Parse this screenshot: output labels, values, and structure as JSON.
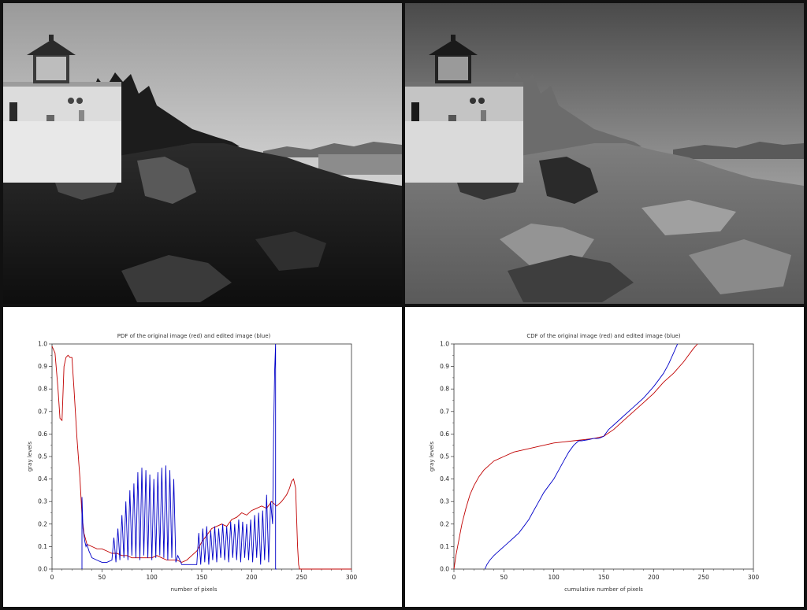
{
  "chart_data": [
    {
      "type": "line",
      "title": "PDF of the original image (red) and edited image (blue)",
      "xlabel": "number of pixels",
      "ylabel": "gray levels",
      "xlim": [
        0,
        300
      ],
      "ylim": [
        0,
        1
      ],
      "xticks": [
        "0",
        "50",
        "100",
        "150",
        "200",
        "250",
        "300"
      ],
      "yticks": [
        "0.0",
        "0.1",
        "0.2",
        "0.3",
        "0.4",
        "0.5",
        "0.6",
        "0.7",
        "0.8",
        "0.9",
        "1.0"
      ],
      "series": [
        {
          "color": "#c00000",
          "x": [
            0,
            3,
            6,
            8,
            10,
            12,
            14,
            16,
            18,
            20,
            22,
            25,
            28,
            30,
            32,
            35,
            40,
            45,
            50,
            55,
            60,
            65,
            70,
            75,
            80,
            85,
            90,
            95,
            100,
            105,
            110,
            115,
            120,
            125,
            130,
            135,
            140,
            145,
            150,
            155,
            160,
            165,
            170,
            175,
            180,
            185,
            190,
            195,
            200,
            205,
            210,
            215,
            220,
            225,
            230,
            235,
            238,
            240,
            242,
            244,
            246,
            247,
            248,
            300
          ],
          "y": [
            0.99,
            0.96,
            0.8,
            0.67,
            0.66,
            0.9,
            0.94,
            0.95,
            0.94,
            0.94,
            0.8,
            0.58,
            0.4,
            0.24,
            0.16,
            0.11,
            0.1,
            0.09,
            0.09,
            0.08,
            0.07,
            0.07,
            0.06,
            0.06,
            0.05,
            0.05,
            0.05,
            0.05,
            0.05,
            0.06,
            0.05,
            0.04,
            0.04,
            0.04,
            0.03,
            0.04,
            0.06,
            0.08,
            0.12,
            0.15,
            0.18,
            0.19,
            0.2,
            0.19,
            0.22,
            0.23,
            0.25,
            0.24,
            0.26,
            0.27,
            0.28,
            0.27,
            0.3,
            0.28,
            0.3,
            0.33,
            0.36,
            0.39,
            0.4,
            0.36,
            0.1,
            0.02,
            0.0,
            0.0
          ]
        },
        {
          "color": "#0000c8",
          "x": [
            30,
            30,
            31,
            32,
            33,
            34,
            35,
            37,
            40,
            45,
            50,
            55,
            60,
            62,
            64,
            66,
            68,
            70,
            72,
            74,
            76,
            78,
            80,
            82,
            84,
            86,
            88,
            90,
            92,
            94,
            96,
            98,
            100,
            102,
            104,
            106,
            108,
            110,
            112,
            114,
            116,
            118,
            120,
            122,
            124,
            126,
            130,
            135,
            140,
            145,
            147,
            149,
            151,
            153,
            155,
            157,
            159,
            161,
            163,
            165,
            167,
            169,
            171,
            173,
            175,
            177,
            179,
            181,
            183,
            185,
            187,
            189,
            191,
            193,
            195,
            197,
            199,
            201,
            203,
            205,
            207,
            209,
            211,
            213,
            215,
            217,
            219,
            221,
            222,
            223,
            224,
            224,
            225
          ],
          "y": [
            0.0,
            0.32,
            0.18,
            0.15,
            0.12,
            0.1,
            0.11,
            0.08,
            0.05,
            0.04,
            0.03,
            0.03,
            0.04,
            0.14,
            0.03,
            0.18,
            0.04,
            0.24,
            0.05,
            0.3,
            0.04,
            0.35,
            0.06,
            0.38,
            0.05,
            0.43,
            0.04,
            0.45,
            0.06,
            0.44,
            0.05,
            0.42,
            0.04,
            0.4,
            0.05,
            0.43,
            0.06,
            0.45,
            0.05,
            0.46,
            0.04,
            0.44,
            0.05,
            0.4,
            0.03,
            0.06,
            0.02,
            0.02,
            0.02,
            0.02,
            0.16,
            0.02,
            0.18,
            0.03,
            0.19,
            0.02,
            0.17,
            0.04,
            0.19,
            0.03,
            0.18,
            0.05,
            0.2,
            0.04,
            0.19,
            0.03,
            0.21,
            0.05,
            0.2,
            0.04,
            0.22,
            0.03,
            0.21,
            0.05,
            0.2,
            0.04,
            0.22,
            0.03,
            0.24,
            0.05,
            0.25,
            0.02,
            0.26,
            0.04,
            0.33,
            0.03,
            0.3,
            0.2,
            0.6,
            0.88,
            1.0,
            0.0,
            0.0
          ]
        }
      ],
      "grid": false,
      "legend": "none"
    },
    {
      "type": "line",
      "title": "CDF of the original image (red) and edited image (blue)",
      "xlabel": "cumulative number of pixels",
      "ylabel": "gray levels",
      "xlim": [
        0,
        300
      ],
      "ylim": [
        0,
        1
      ],
      "xticks": [
        "0",
        "50",
        "100",
        "150",
        "200",
        "250",
        "300"
      ],
      "yticks": [
        "0.0",
        "0.1",
        "0.2",
        "0.3",
        "0.4",
        "0.5",
        "0.6",
        "0.7",
        "0.8",
        "0.9",
        "1.0"
      ],
      "series": [
        {
          "color": "#c00000",
          "x": [
            0,
            2,
            5,
            8,
            12,
            16,
            20,
            25,
            30,
            40,
            50,
            60,
            70,
            80,
            90,
            100,
            110,
            120,
            130,
            140,
            150,
            160,
            170,
            180,
            190,
            200,
            210,
            220,
            230,
            240,
            244
          ],
          "y": [
            0.0,
            0.06,
            0.13,
            0.2,
            0.27,
            0.33,
            0.37,
            0.41,
            0.44,
            0.48,
            0.5,
            0.52,
            0.53,
            0.54,
            0.55,
            0.56,
            0.565,
            0.57,
            0.575,
            0.58,
            0.59,
            0.62,
            0.66,
            0.7,
            0.74,
            0.78,
            0.83,
            0.87,
            0.92,
            0.98,
            1.0
          ]
        },
        {
          "color": "#0000c8",
          "x": [
            31,
            33,
            36,
            40,
            45,
            50,
            55,
            60,
            65,
            70,
            75,
            80,
            85,
            90,
            95,
            100,
            105,
            110,
            115,
            120,
            125,
            128,
            135,
            140,
            145,
            150,
            155,
            160,
            170,
            180,
            190,
            200,
            205,
            210,
            215,
            218,
            220,
            222,
            224
          ],
          "y": [
            0.0,
            0.02,
            0.04,
            0.06,
            0.08,
            0.1,
            0.12,
            0.14,
            0.16,
            0.19,
            0.22,
            0.26,
            0.3,
            0.34,
            0.37,
            0.4,
            0.44,
            0.48,
            0.52,
            0.55,
            0.57,
            0.57,
            0.575,
            0.58,
            0.58,
            0.59,
            0.62,
            0.64,
            0.68,
            0.72,
            0.76,
            0.81,
            0.84,
            0.87,
            0.91,
            0.94,
            0.96,
            0.98,
            1.0
          ]
        }
      ],
      "grid": false,
      "legend": "none"
    }
  ]
}
